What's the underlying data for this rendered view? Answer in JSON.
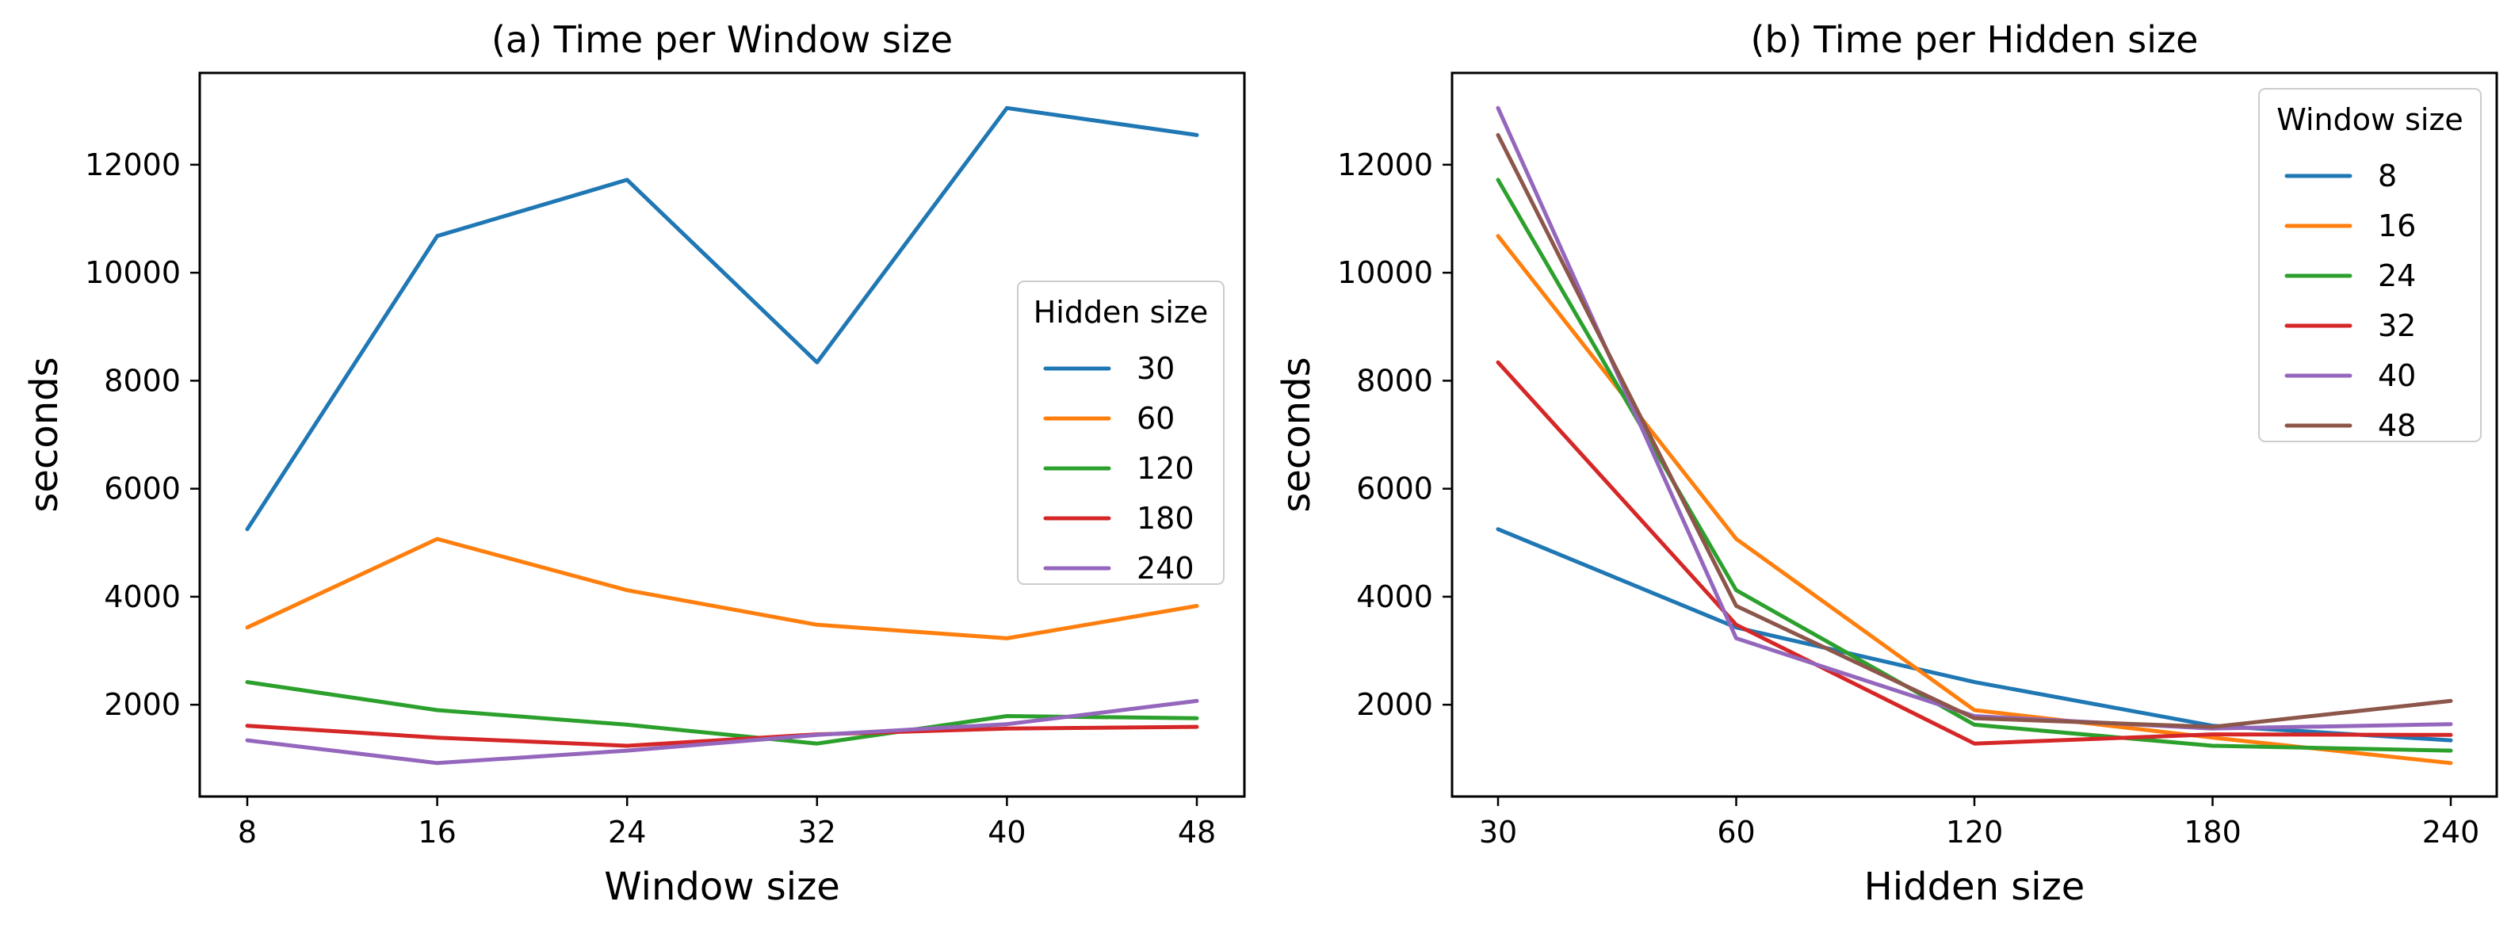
{
  "colors": {
    "blue": "#1f77b4",
    "orange": "#ff7f0e",
    "green": "#2ca02c",
    "red": "#d62728",
    "purple": "#9467bd",
    "brown": "#8c564b"
  },
  "chart_data": [
    {
      "type": "line",
      "title": "(a) Time per Window size",
      "xlabel": "Window size",
      "ylabel": "seconds",
      "categories": [
        "8",
        "16",
        "24",
        "32",
        "40",
        "48"
      ],
      "yticks": [
        2000,
        4000,
        6000,
        8000,
        10000,
        12000
      ],
      "ylim": [
        300,
        13700
      ],
      "legend_title": "Hidden size",
      "legend_position": "center-right",
      "series": [
        {
          "name": "30",
          "color": "#1f77b4",
          "values": [
            5250,
            10680,
            11720,
            8340,
            13050,
            12550
          ]
        },
        {
          "name": "60",
          "color": "#ff7f0e",
          "values": [
            3430,
            5070,
            4120,
            3480,
            3230,
            3830
          ]
        },
        {
          "name": "120",
          "color": "#2ca02c",
          "values": [
            2420,
            1900,
            1630,
            1280,
            1790,
            1750
          ]
        },
        {
          "name": "180",
          "color": "#d62728",
          "values": [
            1610,
            1390,
            1240,
            1450,
            1560,
            1590
          ]
        },
        {
          "name": "240",
          "color": "#9467bd",
          "values": [
            1340,
            920,
            1150,
            1440,
            1640,
            2070
          ]
        }
      ]
    },
    {
      "type": "line",
      "title": "(b) Time per Hidden size",
      "xlabel": "Hidden size",
      "ylabel": "seconds",
      "categories": [
        "30",
        "60",
        "120",
        "180",
        "240"
      ],
      "yticks": [
        2000,
        4000,
        6000,
        8000,
        10000,
        12000
      ],
      "ylim": [
        300,
        13700
      ],
      "legend_title": "Window size",
      "legend_position": "upper-right",
      "series": [
        {
          "name": "8",
          "color": "#1f77b4",
          "values": [
            5250,
            3430,
            2420,
            1610,
            1340
          ]
        },
        {
          "name": "16",
          "color": "#ff7f0e",
          "values": [
            10680,
            5070,
            1900,
            1390,
            920
          ]
        },
        {
          "name": "24",
          "color": "#2ca02c",
          "values": [
            11720,
            4120,
            1630,
            1240,
            1150
          ]
        },
        {
          "name": "32",
          "color": "#d62728",
          "values": [
            8340,
            3480,
            1280,
            1450,
            1440
          ]
        },
        {
          "name": "40",
          "color": "#9467bd",
          "values": [
            13050,
            3230,
            1790,
            1560,
            1640
          ]
        },
        {
          "name": "48",
          "color": "#8c564b",
          "values": [
            12550,
            3830,
            1750,
            1590,
            2070
          ]
        }
      ]
    }
  ]
}
